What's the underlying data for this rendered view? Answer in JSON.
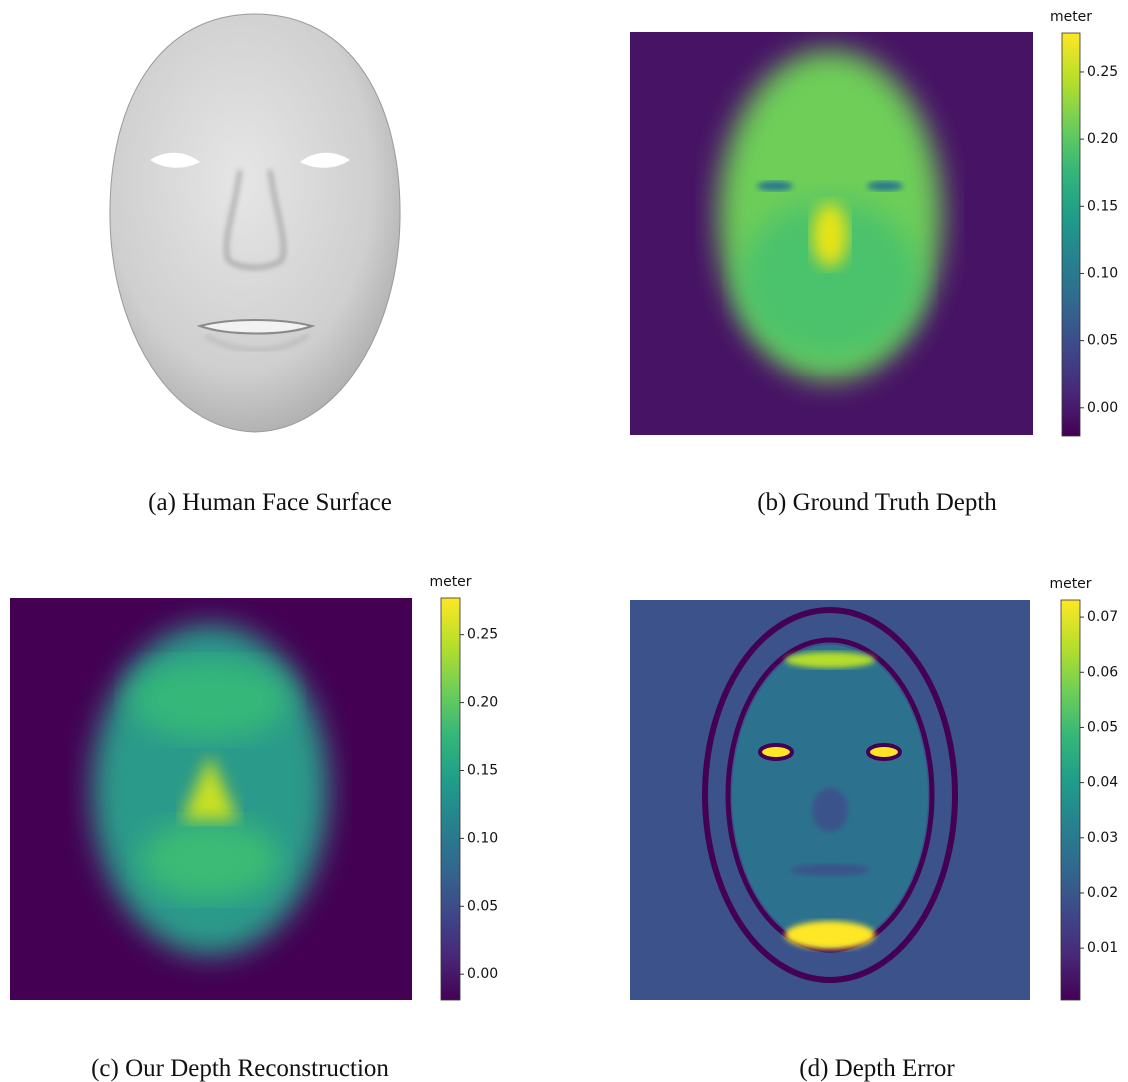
{
  "panels": [
    {
      "caption": "(a) Human Face Surface"
    },
    {
      "caption": "(b) Ground Truth Depth",
      "colorbar": {
        "label": "meter",
        "lim": [
          -0.021,
          0.279
        ],
        "ticks": [
          {
            "value": 0,
            "label": "0.00"
          },
          0.05,
          {
            "value": 0.1,
            "label": "0.10"
          },
          0.15,
          {
            "value": 0.2,
            "label": "0.20"
          },
          0.25
        ]
      }
    },
    {
      "caption": "(c) Our Depth Reconstruction",
      "colorbar": {
        "label": "meter",
        "lim": [
          -0.019,
          0.277
        ],
        "ticks": [
          {
            "value": 0,
            "label": "0.00"
          },
          0.05,
          {
            "value": 0.1,
            "label": "0.10"
          },
          0.15,
          {
            "value": 0.2,
            "label": "0.20"
          },
          0.25
        ]
      }
    },
    {
      "caption": "(d) Depth Error",
      "colorbar": {
        "label": "meter",
        "lim": [
          0.0006,
          0.0731
        ],
        "ticks": [
          0.01,
          0.02,
          0.03,
          0.04,
          0.05,
          0.06,
          0.07
        ]
      }
    }
  ]
}
